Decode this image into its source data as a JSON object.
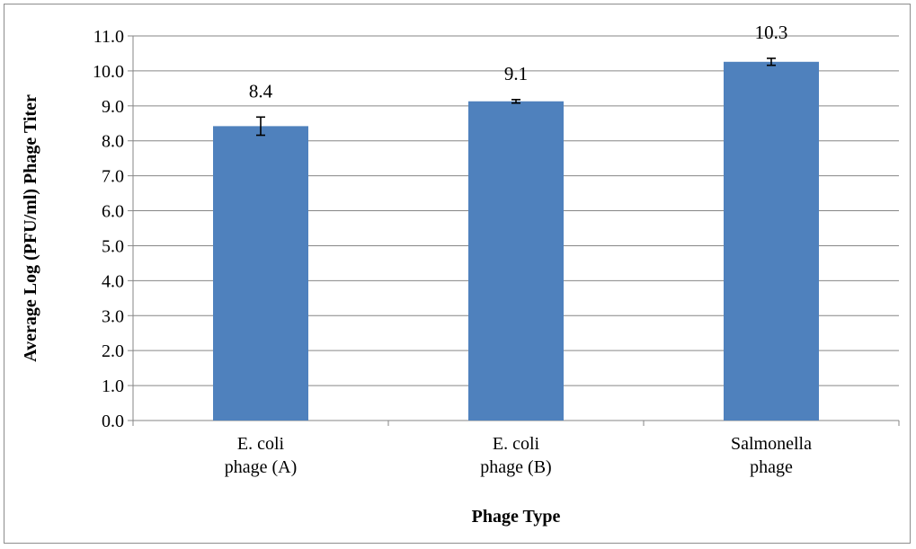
{
  "chart_data": {
    "type": "bar",
    "title": "",
    "xlabel": "Phage Type",
    "ylabel": "Average Log (PFU/ml) Phage Titer",
    "categories": [
      [
        "E. coli",
        "phage (A)"
      ],
      [
        "E. coli",
        "phage (B)"
      ],
      [
        "Salmonella",
        "phage"
      ]
    ],
    "values": [
      8.42,
      9.13,
      10.26
    ],
    "data_labels": [
      "8.4",
      "9.1",
      "10.3"
    ],
    "error": [
      0.26,
      0.05,
      0.1
    ],
    "ylim": [
      0,
      11
    ],
    "yticks": [
      "0.0",
      "1.0",
      "2.0",
      "3.0",
      "4.0",
      "5.0",
      "6.0",
      "7.0",
      "8.0",
      "9.0",
      "10.0",
      "11.0"
    ],
    "grid": true,
    "legend": "none",
    "bar_color": "#4f81bd",
    "grid_color": "#868686"
  }
}
